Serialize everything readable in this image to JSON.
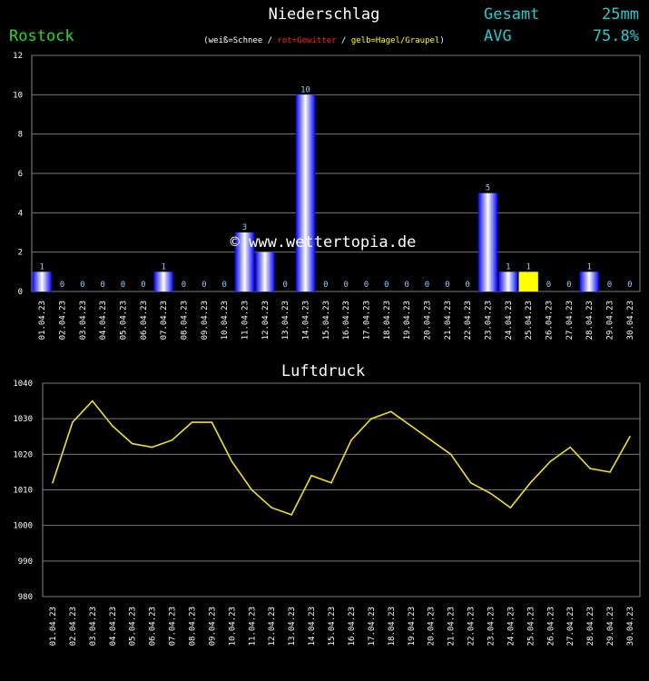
{
  "header": {
    "title": "Niederschlag",
    "station": "Rostock",
    "legend_white": "weiß=Schnee",
    "legend_red": "rot=Gewitter",
    "legend_yellow": "gelb=Hagel/Graupel",
    "sep": "/",
    "paren_open": "(",
    "paren_close": ")",
    "total_label": "Gesamt",
    "total_value": "25mm",
    "avg_label": "AVG",
    "avg_value": "75.8%",
    "watermark": "© www.wettertopia.de"
  },
  "colors": {
    "rain": "#0a0aff",
    "hail": "#ffff00",
    "line": "#f0e020",
    "station": "#22dd22",
    "cyan": "#22cccc",
    "bar_label": "#8fd0ff"
  },
  "chart_data": [
    {
      "type": "bar",
      "title": "Niederschlag",
      "ylim": [
        0,
        12
      ],
      "yticks": [
        "0",
        "2",
        "4",
        "6",
        "8",
        "10",
        "12"
      ],
      "grid": true,
      "categories": [
        "01.04.23",
        "02.04.23",
        "03.04.23",
        "04.04.23",
        "05.04.23",
        "06.04.23",
        "07.04.23",
        "08.04.23",
        "09.04.23",
        "10.04.23",
        "11.04.23",
        "12.04.23",
        "13.04.23",
        "14.04.23",
        "15.04.23",
        "16.04.23",
        "17.04.23",
        "18.04.23",
        "19.04.23",
        "20.04.23",
        "21.04.23",
        "22.04.23",
        "23.04.23",
        "24.04.23",
        "25.04.23",
        "26.04.23",
        "27.04.23",
        "28.04.23",
        "29.04.23",
        "30.04.23"
      ],
      "values": [
        1,
        0,
        0,
        0,
        0,
        0,
        1,
        0,
        0,
        0,
        3,
        2,
        0,
        10,
        0,
        0,
        0,
        0,
        0,
        0,
        0,
        0,
        5,
        1,
        1,
        0,
        0,
        1,
        0,
        0
      ],
      "value_labels": [
        "1",
        "0",
        "0",
        "0",
        "0",
        "0",
        "1",
        "0",
        "0",
        "0",
        "3",
        "",
        "0",
        "10",
        "0",
        "0",
        "0",
        "0",
        "0",
        "0",
        "0",
        "0",
        "5",
        "1",
        "1",
        "0",
        "0",
        "1",
        "0",
        "0"
      ],
      "kind": [
        "rain",
        "rain",
        "rain",
        "rain",
        "rain",
        "rain",
        "rain",
        "rain",
        "rain",
        "rain",
        "rain",
        "rain",
        "rain",
        "rain",
        "rain",
        "rain",
        "rain",
        "rain",
        "rain",
        "rain",
        "rain",
        "rain",
        "rain",
        "rain",
        "hail",
        "rain",
        "rain",
        "rain",
        "rain",
        "rain"
      ]
    },
    {
      "type": "line",
      "title": "Luftdruck",
      "ylim": [
        980,
        1040
      ],
      "yticks": [
        "980",
        "990",
        "1000",
        "1010",
        "1020",
        "1030",
        "1040"
      ],
      "grid": true,
      "categories": [
        "01.04.23",
        "02.04.23",
        "03.04.23",
        "04.04.23",
        "05.04.23",
        "06.04.23",
        "07.04.23",
        "08.04.23",
        "09.04.23",
        "10.04.23",
        "11.04.23",
        "12.04.23",
        "13.04.23",
        "14.04.23",
        "15.04.23",
        "16.04.23",
        "17.04.23",
        "18.04.23",
        "19.04.23",
        "20.04.23",
        "21.04.23",
        "22.04.23",
        "23.04.23",
        "24.04.23",
        "25.04.23",
        "26.04.23",
        "27.04.23",
        "28.04.23",
        "29.04.23",
        "30.04.23"
      ],
      "values": [
        1012,
        1029,
        1035,
        1028,
        1023,
        1022,
        1024,
        1029,
        1029,
        1018,
        1010,
        1005,
        1003,
        1014,
        1012,
        1024,
        1030,
        1032,
        1028,
        1024,
        1020,
        1012,
        1009,
        1005,
        1012,
        1018,
        1022,
        1016,
        1015,
        1025
      ]
    }
  ]
}
